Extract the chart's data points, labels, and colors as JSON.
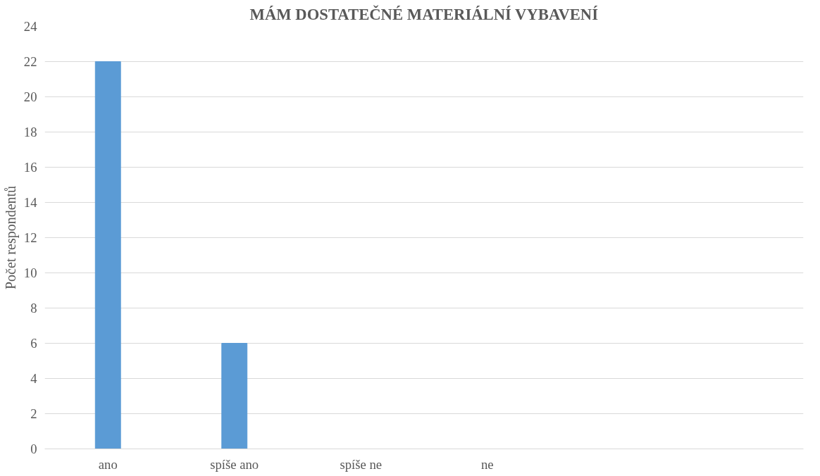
{
  "chart_data": {
    "type": "bar",
    "title": "MÁM DOSTATEČNÉ MATERIÁLNÍ VYBAVENÍ",
    "ylabel": "Počet respondentů",
    "categories": [
      "ano",
      "spíše ano",
      "spíše ne",
      "ne",
      null,
      null
    ],
    "values": [
      22,
      6,
      0,
      0,
      null,
      null
    ],
    "color": "#5b9bd5",
    "ylim": [
      0,
      24
    ],
    "yticks": [
      0,
      2,
      4,
      6,
      8,
      10,
      12,
      14,
      16,
      18,
      20,
      22,
      24
    ],
    "grid": "y"
  }
}
